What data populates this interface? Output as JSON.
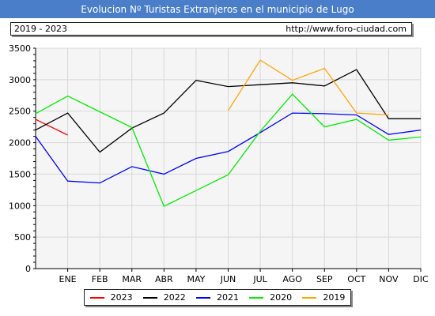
{
  "header": {
    "title": "Evolucion Nº Turistas Extranjeros en el municipio de Lugo"
  },
  "subheader": {
    "period": "2019 - 2023",
    "url": "http://www.foro-ciudad.com"
  },
  "colors": {
    "title_bg": "#4a7ec8",
    "plot_bg": "#f5f5f5",
    "grid": "#d8d8d8"
  },
  "chart_data": {
    "type": "line",
    "categories": [
      "ENE",
      "FEB",
      "MAR",
      "ABR",
      "MAY",
      "JUN",
      "JUL",
      "AGO",
      "SEP",
      "OCT",
      "NOV",
      "DIC"
    ],
    "ylim": [
      0,
      3500
    ],
    "yticks": [
      0,
      500,
      1000,
      1500,
      2000,
      2500,
      3000,
      3500
    ],
    "grid": true,
    "legend_position": "bottom",
    "series": [
      {
        "name": "2023",
        "color": "#ff0000",
        "points": [
          [
            0,
            2370
          ],
          [
            1,
            2120
          ]
        ]
      },
      {
        "name": "2022",
        "color": "#000000",
        "points": [
          [
            0,
            2200
          ],
          [
            1,
            2470
          ],
          [
            2,
            1850
          ],
          [
            3,
            2230
          ],
          [
            4,
            2470
          ],
          [
            5,
            2990
          ],
          [
            6,
            2890
          ],
          [
            7,
            2920
          ],
          [
            8,
            2950
          ],
          [
            9,
            2900
          ],
          [
            10,
            3160
          ],
          [
            11,
            2380
          ],
          [
            12,
            2380
          ]
        ]
      },
      {
        "name": "2021",
        "color": "#0000ff",
        "points": [
          [
            0,
            2100
          ],
          [
            1,
            1390
          ],
          [
            2,
            1360
          ],
          [
            3,
            1620
          ],
          [
            4,
            1500
          ],
          [
            5,
            1750
          ],
          [
            6,
            1860
          ],
          [
            7,
            2160
          ],
          [
            8,
            2470
          ],
          [
            9,
            2460
          ],
          [
            10,
            2440
          ],
          [
            11,
            2130
          ],
          [
            12,
            2200
          ]
        ]
      },
      {
        "name": "2020",
        "color": "#00ee00",
        "points": [
          [
            0,
            2460
          ],
          [
            1,
            2740
          ],
          [
            2,
            2490
          ],
          [
            3,
            2240
          ],
          [
            4,
            990
          ],
          [
            5,
            1240
          ],
          [
            6,
            1490
          ],
          [
            7,
            2180
          ],
          [
            8,
            2770
          ],
          [
            9,
            2250
          ],
          [
            10,
            2370
          ],
          [
            11,
            2040
          ],
          [
            12,
            2090
          ]
        ]
      },
      {
        "name": "2019",
        "color": "#ffa500",
        "points": [
          [
            6,
            2510
          ],
          [
            7,
            3310
          ],
          [
            8,
            2990
          ],
          [
            9,
            3180
          ],
          [
            10,
            2470
          ],
          [
            11,
            2440
          ]
        ]
      }
    ]
  }
}
